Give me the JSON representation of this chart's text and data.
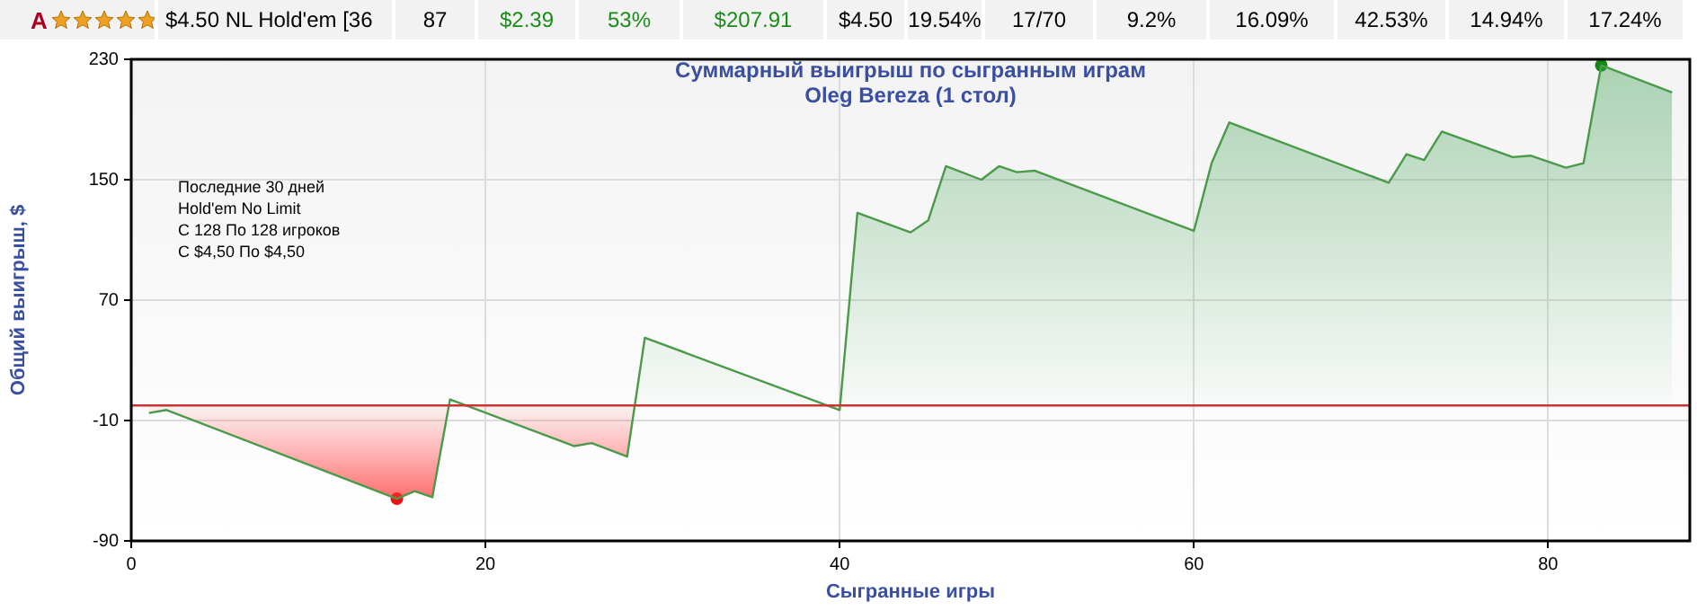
{
  "chart_data": {
    "type": "area",
    "title": "Суммарный выигрыш по сыгранным играм",
    "subtitle": "Oleg Bereza (1 стол)",
    "xlabel": "Сыгранные игры",
    "ylabel": "Общий выигрыш, $",
    "annotations": [
      "A",
      "$4.50 NL Hold'em [36",
      "87",
      "$2.39",
      "53%",
      "$207.91",
      "$4.50",
      "19.54%",
      "17/70",
      "9.2%",
      "16.09%",
      "42.53%",
      "14.94%",
      "17.24%",
      "Последние 30 дней\nHold'em No Limit\nС 128 По 128 игроков\nС $4,50 По $4,50"
    ],
    "series": [
      {
        "color": "#4a9a4a",
        "marker": "none",
        "x": [
          1,
          2,
          15,
          16,
          17,
          18,
          25,
          26,
          28,
          29,
          40,
          41,
          44,
          45,
          46,
          48,
          49,
          50,
          51,
          60,
          61,
          62,
          71,
          72,
          73,
          74,
          78,
          79,
          81,
          82,
          83,
          87
        ],
        "values": [
          -5,
          -3,
          -62,
          -57,
          -61,
          4,
          -27,
          -25,
          -34,
          45,
          -3,
          128,
          115,
          123,
          159,
          150,
          159,
          155,
          156,
          116,
          161,
          188,
          148,
          167,
          163,
          182,
          165,
          166,
          158,
          161,
          226,
          208
        ]
      },
      {
        "type": "scatter",
        "color": "#ee1111",
        "marker": "circle",
        "x": [
          15
        ],
        "values": [
          -62
        ]
      },
      {
        "type": "scatter",
        "color": "#118811",
        "marker": "circle",
        "x": [
          83
        ],
        "values": [
          226
        ]
      }
    ],
    "xlim": [
      0,
      88
    ],
    "xticks": [
      0,
      20,
      40,
      60,
      80
    ],
    "ylim": [
      -90,
      230
    ],
    "yticks": [
      -90,
      -10,
      70,
      150,
      230
    ],
    "grid": true,
    "ref_lines": [
      {
        "axis": "y",
        "value": 0,
        "color": "#cc3333"
      }
    ]
  }
}
